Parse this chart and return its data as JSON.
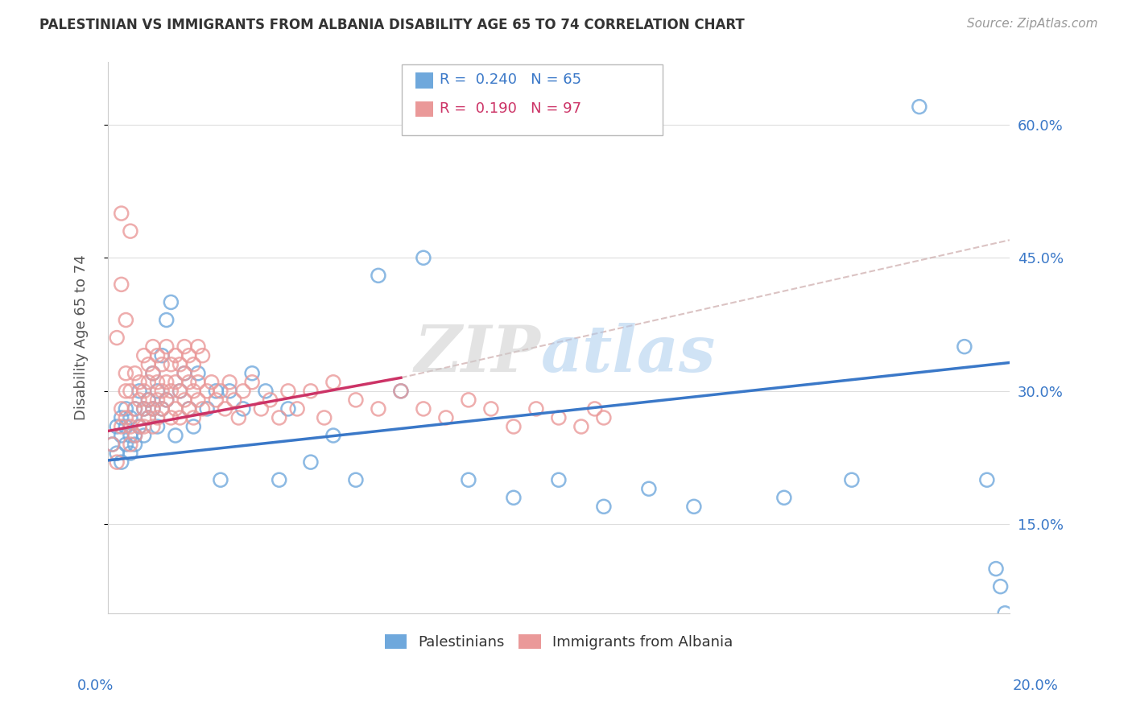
{
  "title": "PALESTINIAN VS IMMIGRANTS FROM ALBANIA DISABILITY AGE 65 TO 74 CORRELATION CHART",
  "source": "Source: ZipAtlas.com",
  "ylabel": "Disability Age 65 to 74",
  "ytick_vals": [
    0.15,
    0.3,
    0.45,
    0.6
  ],
  "ytick_labels": [
    "15.0%",
    "30.0%",
    "45.0%",
    "60.0%"
  ],
  "xlim": [
    0.0,
    0.2
  ],
  "ylim": [
    0.05,
    0.67
  ],
  "blue_r": 0.24,
  "blue_n": 65,
  "pink_r": 0.19,
  "pink_n": 97,
  "blue_color": "#6fa8dc",
  "pink_color": "#ea9999",
  "blue_line_color": "#3a78c8",
  "pink_line_color": "#cc3366",
  "legend_labels": [
    "Palestinians",
    "Immigrants from Albania"
  ],
  "blue_scatter_x": [
    0.001,
    0.002,
    0.002,
    0.003,
    0.003,
    0.003,
    0.004,
    0.004,
    0.004,
    0.005,
    0.005,
    0.005,
    0.006,
    0.006,
    0.006,
    0.007,
    0.007,
    0.008,
    0.008,
    0.009,
    0.009,
    0.01,
    0.01,
    0.011,
    0.011,
    0.012,
    0.012,
    0.013,
    0.013,
    0.014,
    0.015,
    0.016,
    0.017,
    0.018,
    0.019,
    0.02,
    0.022,
    0.024,
    0.025,
    0.027,
    0.03,
    0.032,
    0.035,
    0.038,
    0.04,
    0.045,
    0.05,
    0.055,
    0.06,
    0.065,
    0.07,
    0.08,
    0.09,
    0.1,
    0.11,
    0.12,
    0.13,
    0.15,
    0.165,
    0.18,
    0.19,
    0.195,
    0.197,
    0.198,
    0.199
  ],
  "blue_scatter_y": [
    0.24,
    0.26,
    0.23,
    0.27,
    0.25,
    0.22,
    0.26,
    0.24,
    0.28,
    0.25,
    0.23,
    0.27,
    0.25,
    0.28,
    0.24,
    0.3,
    0.26,
    0.28,
    0.25,
    0.29,
    0.27,
    0.32,
    0.28,
    0.3,
    0.26,
    0.34,
    0.28,
    0.38,
    0.29,
    0.4,
    0.25,
    0.3,
    0.32,
    0.28,
    0.26,
    0.32,
    0.28,
    0.3,
    0.2,
    0.3,
    0.28,
    0.32,
    0.3,
    0.2,
    0.28,
    0.22,
    0.25,
    0.2,
    0.43,
    0.3,
    0.45,
    0.2,
    0.18,
    0.2,
    0.17,
    0.19,
    0.17,
    0.18,
    0.2,
    0.62,
    0.35,
    0.2,
    0.1,
    0.08,
    0.05
  ],
  "pink_scatter_x": [
    0.001,
    0.002,
    0.002,
    0.003,
    0.003,
    0.003,
    0.004,
    0.004,
    0.004,
    0.005,
    0.005,
    0.005,
    0.006,
    0.006,
    0.006,
    0.007,
    0.007,
    0.007,
    0.008,
    0.008,
    0.008,
    0.009,
    0.009,
    0.009,
    0.01,
    0.01,
    0.01,
    0.011,
    0.011,
    0.011,
    0.012,
    0.012,
    0.013,
    0.013,
    0.014,
    0.014,
    0.015,
    0.015,
    0.016,
    0.016,
    0.017,
    0.017,
    0.018,
    0.018,
    0.019,
    0.019,
    0.02,
    0.02,
    0.021,
    0.022,
    0.023,
    0.024,
    0.025,
    0.026,
    0.027,
    0.028,
    0.029,
    0.03,
    0.032,
    0.034,
    0.036,
    0.038,
    0.04,
    0.042,
    0.045,
    0.048,
    0.05,
    0.055,
    0.06,
    0.065,
    0.07,
    0.075,
    0.08,
    0.085,
    0.09,
    0.095,
    0.1,
    0.105,
    0.108,
    0.11,
    0.008,
    0.009,
    0.01,
    0.011,
    0.012,
    0.013,
    0.014,
    0.015,
    0.016,
    0.017,
    0.018,
    0.019,
    0.02,
    0.021,
    0.003,
    0.004,
    0.005
  ],
  "pink_scatter_y": [
    0.24,
    0.36,
    0.22,
    0.28,
    0.26,
    0.5,
    0.3,
    0.27,
    0.32,
    0.26,
    0.24,
    0.3,
    0.28,
    0.25,
    0.32,
    0.29,
    0.26,
    0.31,
    0.28,
    0.26,
    0.3,
    0.29,
    0.27,
    0.31,
    0.28,
    0.26,
    0.32,
    0.29,
    0.27,
    0.31,
    0.3,
    0.28,
    0.31,
    0.29,
    0.3,
    0.27,
    0.31,
    0.28,
    0.3,
    0.27,
    0.32,
    0.29,
    0.31,
    0.28,
    0.3,
    0.27,
    0.29,
    0.31,
    0.28,
    0.3,
    0.31,
    0.29,
    0.3,
    0.28,
    0.31,
    0.29,
    0.27,
    0.3,
    0.31,
    0.28,
    0.29,
    0.27,
    0.3,
    0.28,
    0.3,
    0.27,
    0.31,
    0.29,
    0.28,
    0.3,
    0.28,
    0.27,
    0.29,
    0.28,
    0.26,
    0.28,
    0.27,
    0.26,
    0.28,
    0.27,
    0.34,
    0.33,
    0.35,
    0.34,
    0.33,
    0.35,
    0.33,
    0.34,
    0.33,
    0.35,
    0.34,
    0.33,
    0.35,
    0.34,
    0.42,
    0.38,
    0.48
  ]
}
